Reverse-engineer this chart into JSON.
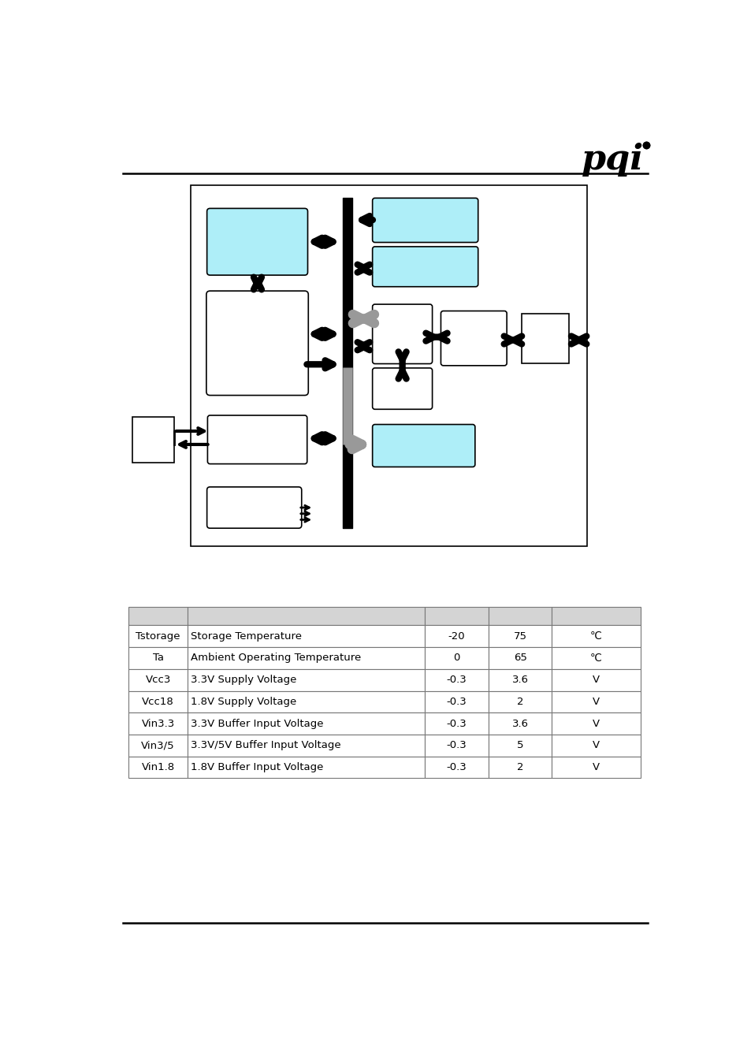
{
  "bg_color": "#ffffff",
  "cyan_color": "#aeeef8",
  "black_color": "#000000",
  "table_rows": [
    [
      "Tstorage",
      "Storage Temperature",
      "-20",
      "75",
      "℃"
    ],
    [
      "Ta",
      "Ambient Operating Temperature",
      "0",
      "65",
      "℃"
    ],
    [
      "Vcc3",
      "3.3V Supply Voltage",
      "-0.3",
      "3.6",
      "V"
    ],
    [
      "Vcc18",
      "1.8V Supply Voltage",
      "-0.3",
      "2",
      "V"
    ],
    [
      "Vin3.3",
      "3.3V Buffer Input Voltage",
      "-0.3",
      "3.6",
      "V"
    ],
    [
      "Vin3/5",
      "3.3V/5V Buffer Input Voltage",
      "-0.3",
      "5",
      "V"
    ],
    [
      "Vin1.8",
      "1.8V Buffer Input Voltage",
      "-0.3",
      "2",
      "V"
    ]
  ]
}
